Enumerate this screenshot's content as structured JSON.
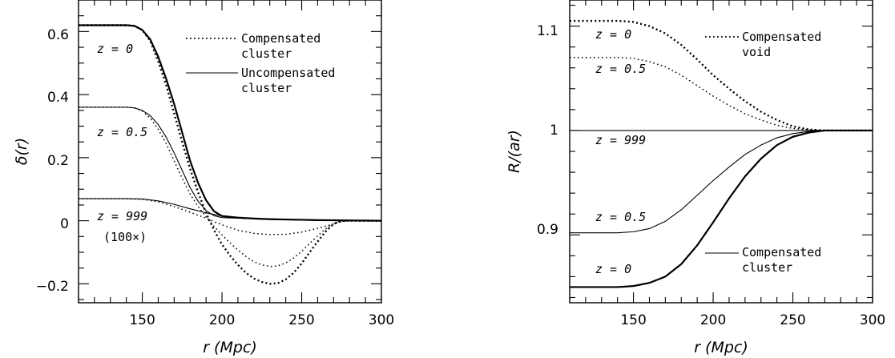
{
  "chart_data": [
    {
      "type": "line",
      "xlabel": "r (Mpc)",
      "ylabel": "δ(r)",
      "xlim": [
        110,
        300
      ],
      "ylim": [
        -0.26,
        0.7
      ],
      "x_ticks": [
        150,
        200,
        250,
        300
      ],
      "y_ticks": [
        -0.2,
        0,
        0.2,
        0.4,
        0.6
      ],
      "y_tick_labels": [
        "−0.2",
        "0",
        "0.2",
        "0.4",
        "0.6"
      ],
      "legend": [
        {
          "style": "dotted",
          "line1": "Compensated",
          "line2": "cluster"
        },
        {
          "style": "solid",
          "line1": "Uncompensated",
          "line2": "cluster"
        }
      ],
      "annotations": [
        "z = 0",
        "z = 0.5",
        "z = 999",
        "(100×)"
      ],
      "series": [
        {
          "style": "solid",
          "weight": "heavy",
          "x": [
            110,
            140,
            145,
            150,
            155,
            160,
            165,
            170,
            175,
            180,
            185,
            190,
            195,
            200,
            210,
            220,
            230,
            240,
            250,
            260,
            270,
            280,
            300
          ],
          "y": [
            0.62,
            0.62,
            0.618,
            0.605,
            0.575,
            0.52,
            0.45,
            0.37,
            0.28,
            0.19,
            0.12,
            0.065,
            0.03,
            0.015,
            0.01,
            0.007,
            0.005,
            0.004,
            0.003,
            0.002,
            0.0015,
            0.001,
            0
          ]
        },
        {
          "style": "dotted",
          "weight": "heavy",
          "x": [
            110,
            140,
            145,
            150,
            155,
            160,
            165,
            170,
            175,
            180,
            185,
            190,
            195,
            200,
            205,
            210,
            215,
            220,
            225,
            230,
            235,
            240,
            245,
            250,
            255,
            260,
            265,
            270,
            275,
            280,
            300
          ],
          "y": [
            0.62,
            0.62,
            0.618,
            0.605,
            0.57,
            0.505,
            0.43,
            0.34,
            0.25,
            0.165,
            0.09,
            0.025,
            -0.03,
            -0.075,
            -0.11,
            -0.14,
            -0.165,
            -0.183,
            -0.194,
            -0.2,
            -0.198,
            -0.186,
            -0.165,
            -0.135,
            -0.1,
            -0.066,
            -0.034,
            -0.01,
            0,
            0,
            0
          ]
        },
        {
          "style": "solid",
          "weight": "light",
          "x": [
            110,
            140,
            145,
            150,
            155,
            160,
            165,
            170,
            175,
            180,
            185,
            190,
            195,
            200,
            210,
            220,
            230,
            240,
            250,
            260,
            270,
            280,
            300
          ],
          "y": [
            0.36,
            0.36,
            0.358,
            0.35,
            0.333,
            0.305,
            0.265,
            0.215,
            0.16,
            0.105,
            0.062,
            0.032,
            0.016,
            0.01,
            0.008,
            0.006,
            0.005,
            0.004,
            0.003,
            0.002,
            0.0015,
            0.001,
            0
          ]
        },
        {
          "style": "dotted",
          "weight": "light",
          "x": [
            110,
            140,
            145,
            150,
            155,
            160,
            165,
            170,
            175,
            180,
            185,
            190,
            195,
            200,
            205,
            210,
            215,
            220,
            225,
            230,
            235,
            240,
            245,
            250,
            255,
            260,
            265,
            270,
            275,
            280,
            300
          ],
          "y": [
            0.36,
            0.36,
            0.358,
            0.348,
            0.325,
            0.29,
            0.245,
            0.19,
            0.135,
            0.085,
            0.045,
            0.012,
            -0.018,
            -0.045,
            -0.07,
            -0.093,
            -0.113,
            -0.13,
            -0.14,
            -0.145,
            -0.143,
            -0.134,
            -0.118,
            -0.097,
            -0.072,
            -0.048,
            -0.026,
            -0.009,
            0,
            0,
            0
          ]
        },
        {
          "style": "solid",
          "weight": "light",
          "x": [
            110,
            140,
            150,
            160,
            170,
            180,
            190,
            200,
            210,
            220,
            230,
            240,
            250,
            260,
            270,
            280,
            300
          ],
          "y": [
            0.07,
            0.07,
            0.069,
            0.063,
            0.052,
            0.038,
            0.025,
            0.015,
            0.009,
            0.006,
            0.004,
            0.003,
            0.002,
            0.0015,
            0.001,
            0.0005,
            0
          ]
        },
        {
          "style": "dotted",
          "weight": "light",
          "x": [
            110,
            140,
            150,
            160,
            170,
            180,
            190,
            200,
            210,
            220,
            230,
            240,
            250,
            260,
            270,
            275,
            280,
            300
          ],
          "y": [
            0.07,
            0.07,
            0.068,
            0.06,
            0.045,
            0.027,
            0.008,
            -0.013,
            -0.03,
            -0.04,
            -0.044,
            -0.043,
            -0.036,
            -0.024,
            -0.01,
            -0.003,
            0,
            0
          ]
        }
      ]
    },
    {
      "type": "line",
      "xlabel": "r (Mpc)",
      "ylabel": "R/(ar)",
      "xlim": [
        110,
        300
      ],
      "ylim": [
        0.835,
        1.125
      ],
      "x_ticks": [
        150,
        200,
        250,
        300
      ],
      "y_ticks": [
        0.9,
        1,
        1.1
      ],
      "y_tick_labels": [
        "0.9",
        "1",
        "1.1"
      ],
      "legend": [
        {
          "style": "dotted",
          "line1": "Compensated",
          "line2": "void"
        },
        {
          "style": "solid",
          "line1": "Compensated",
          "line2": "cluster"
        }
      ],
      "annotations": [
        "z = 0",
        "z = 0.5",
        "z = 999",
        "z = 0.5",
        "z = 0"
      ],
      "series": [
        {
          "style": "dotted",
          "weight": "heavy",
          "x": [
            110,
            140,
            150,
            160,
            170,
            180,
            190,
            200,
            210,
            220,
            230,
            240,
            250,
            260,
            270,
            280,
            300
          ],
          "y": [
            1.105,
            1.105,
            1.104,
            1.1,
            1.093,
            1.082,
            1.068,
            1.053,
            1.04,
            1.028,
            1.018,
            1.01,
            1.004,
            1.001,
            1,
            1,
            1
          ]
        },
        {
          "style": "dotted",
          "weight": "light",
          "x": [
            110,
            140,
            150,
            160,
            170,
            180,
            190,
            200,
            210,
            220,
            230,
            240,
            250,
            260,
            270,
            280,
            300
          ],
          "y": [
            1.07,
            1.07,
            1.069,
            1.066,
            1.061,
            1.053,
            1.043,
            1.033,
            1.024,
            1.016,
            1.01,
            1.005,
            1.002,
            1.0005,
            1,
            1,
            1
          ]
        },
        {
          "style": "solid",
          "weight": "light",
          "x": [
            110,
            300
          ],
          "y": [
            1,
            1
          ]
        },
        {
          "style": "solid",
          "weight": "light",
          "x": [
            110,
            140,
            150,
            160,
            170,
            180,
            190,
            200,
            210,
            220,
            230,
            240,
            250,
            260,
            270,
            280,
            300
          ],
          "y": [
            0.902,
            0.902,
            0.903,
            0.906,
            0.913,
            0.924,
            0.938,
            0.952,
            0.965,
            0.977,
            0.986,
            0.993,
            0.997,
            0.999,
            1,
            1,
            1
          ]
        },
        {
          "style": "solid",
          "weight": "heavy",
          "x": [
            110,
            140,
            150,
            160,
            170,
            180,
            190,
            200,
            210,
            220,
            230,
            240,
            250,
            260,
            270,
            280,
            300
          ],
          "y": [
            0.85,
            0.85,
            0.851,
            0.854,
            0.86,
            0.872,
            0.89,
            0.912,
            0.935,
            0.956,
            0.973,
            0.986,
            0.994,
            0.998,
            1,
            1,
            1
          ]
        }
      ]
    }
  ]
}
